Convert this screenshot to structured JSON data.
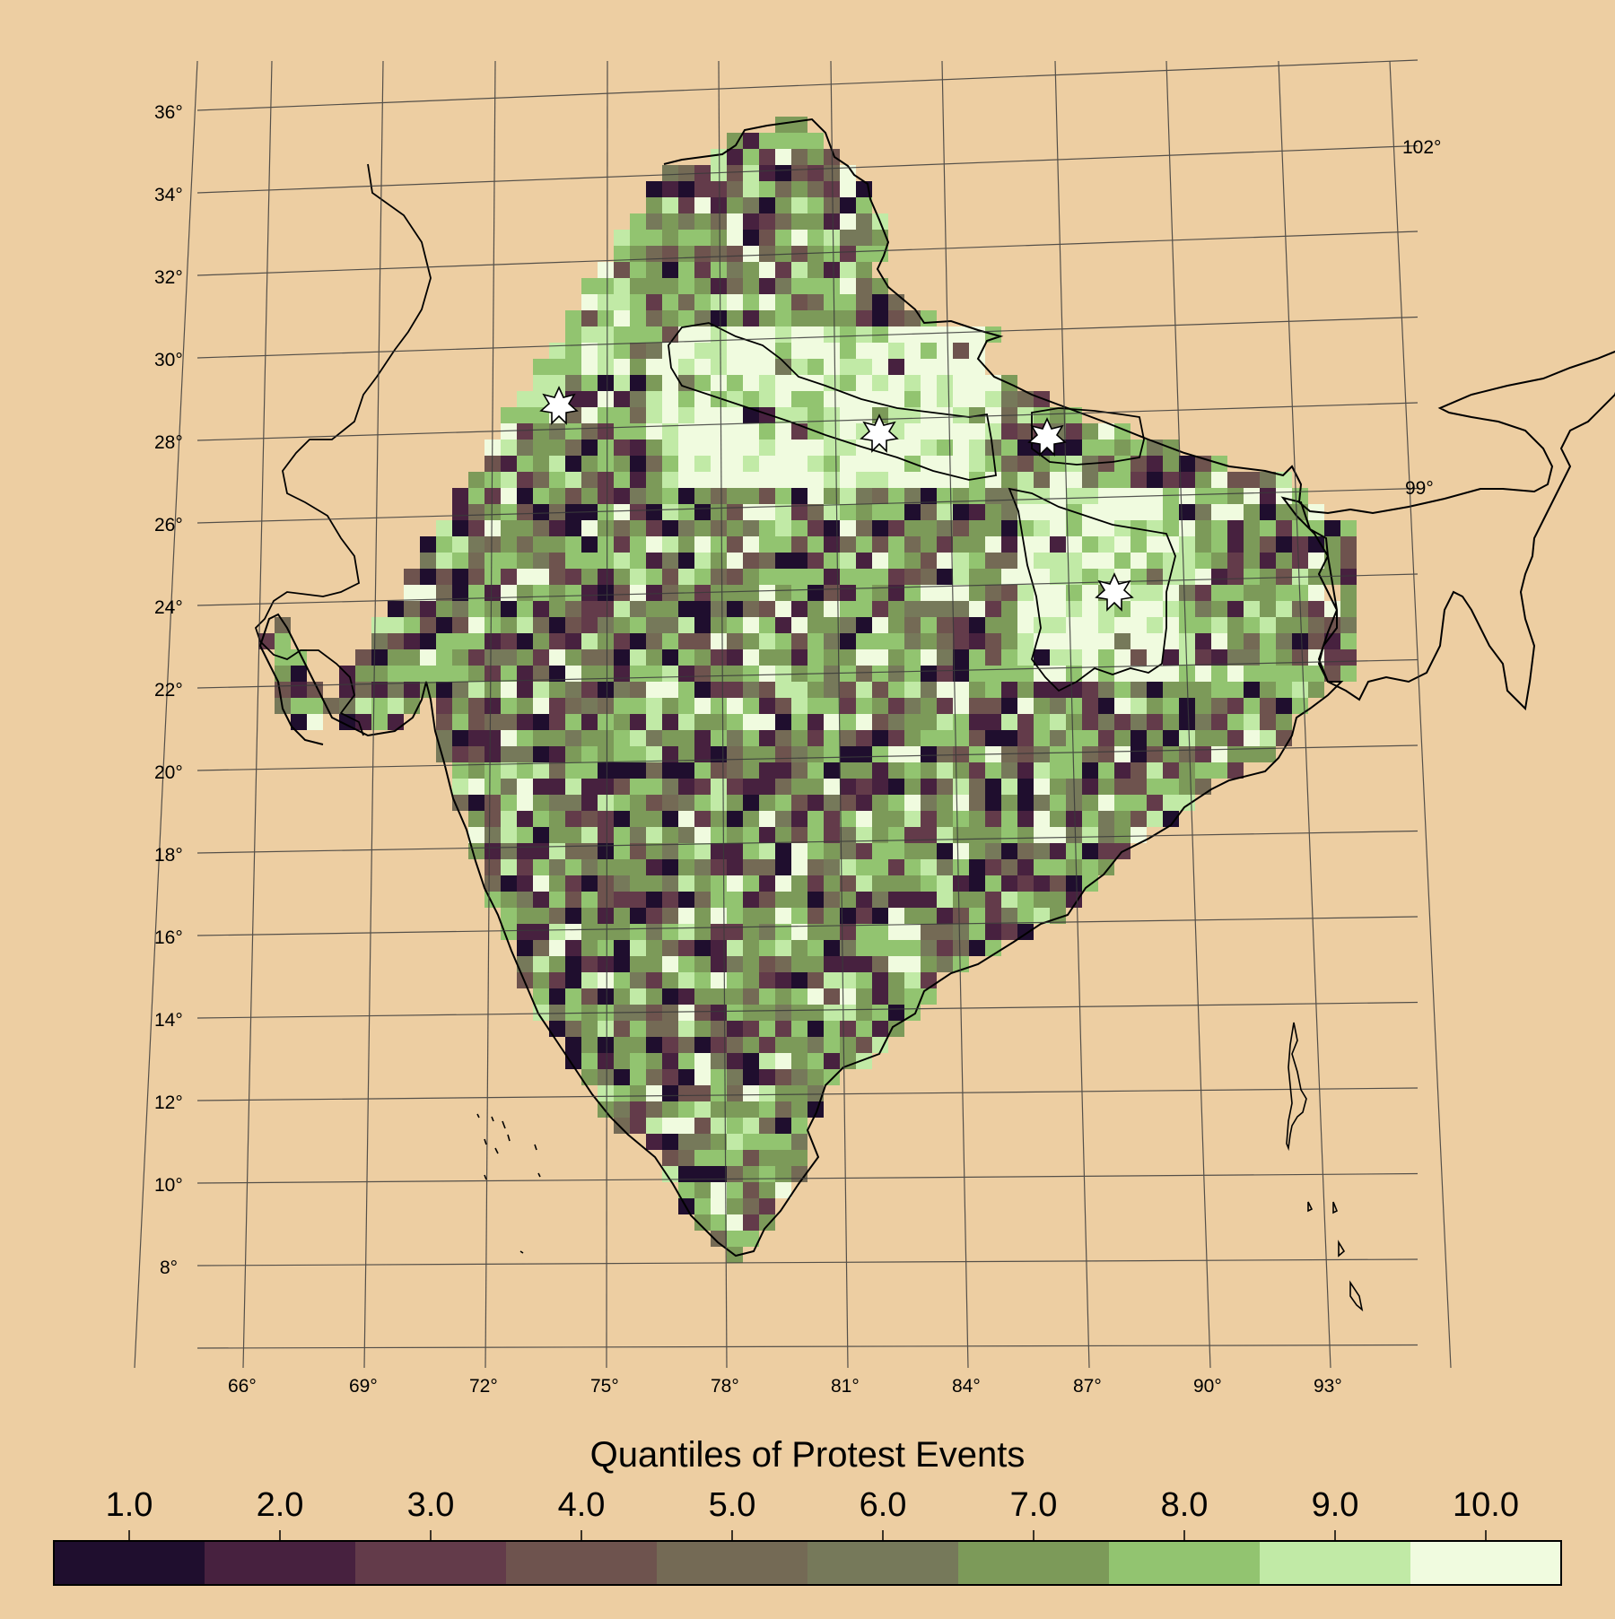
{
  "map": {
    "background": "#EDCEA2",
    "latitude_labels": [
      "36°",
      "34°",
      "32°",
      "30°",
      "28°",
      "26°",
      "24°",
      "22°",
      "20°",
      "18°",
      "16°",
      "14°",
      "12°",
      "10°",
      "8°"
    ],
    "longitude_labels": [
      "66°",
      "69°",
      "72°",
      "75°",
      "78°",
      "81°",
      "84°",
      "87°",
      "90°",
      "93°"
    ],
    "edge_labels": [
      "102°",
      "99°"
    ],
    "marker_icon": "star-marker-icon",
    "marker_count": 4,
    "grid": true
  },
  "legend": {
    "title": "Quantiles of Protest Events",
    "labels": [
      "1.0",
      "2.0",
      "3.0",
      "4.0",
      "5.0",
      "6.0",
      "7.0",
      "8.0",
      "9.0",
      "10.0"
    ],
    "colors": [
      "#1F0E2E",
      "#47213F",
      "#633B4A",
      "#6E534E",
      "#746A55",
      "#76795A",
      "#7C9A59",
      "#92C470",
      "#C1EAA6",
      "#F0FBDF"
    ]
  }
}
